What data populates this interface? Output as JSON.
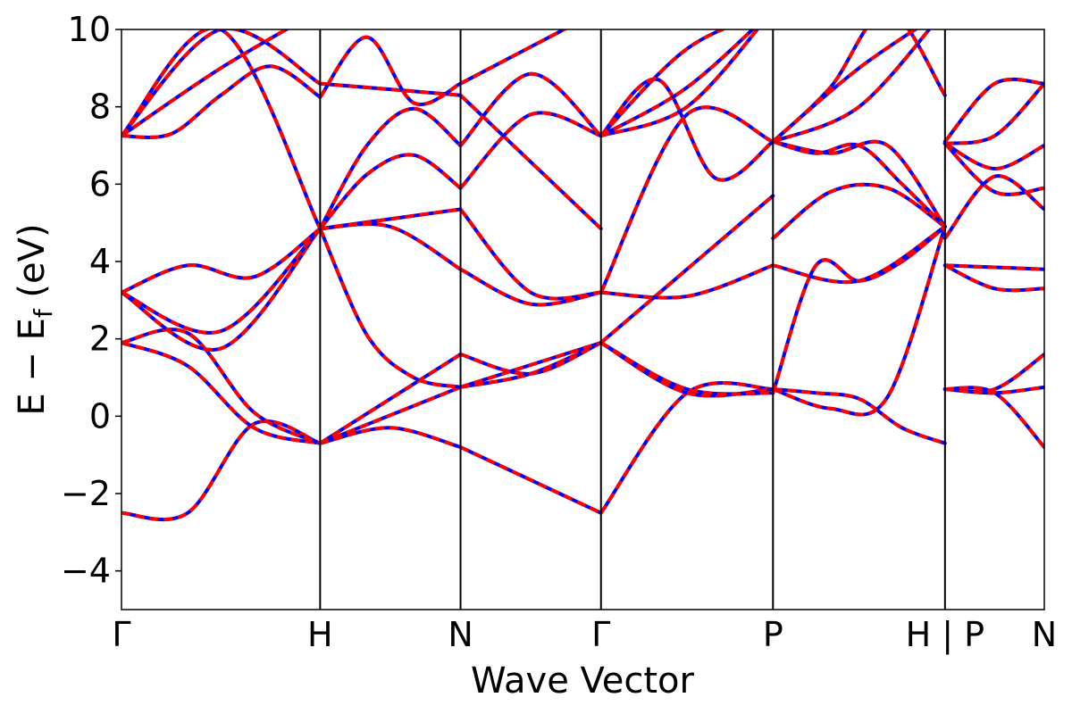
{
  "chart_data": {
    "type": "line",
    "title": "",
    "xlabel": "Wave Vector",
    "ylabel": "E − E",
    "ylabel_sub": "f",
    "ylabel_unit": " (eV)",
    "ylim": [
      -5,
      10
    ],
    "yticks": [
      -4,
      -2,
      0,
      2,
      4,
      6,
      8,
      10
    ],
    "ytick_labels": [
      "−4",
      "−2",
      "0",
      "2",
      "4",
      "6",
      "8",
      "10"
    ],
    "kpath_positions": [
      0,
      1.0,
      0.707,
      0.707,
      0.866,
      0.866,
      0.5
    ],
    "kpath_labels": [
      "Γ",
      "H",
      "N",
      "Γ",
      "P",
      "H | P",
      "N"
    ],
    "grid": false,
    "legend": "none",
    "series_styles": {
      "reference": {
        "color": "#0000ff",
        "style": "solid"
      },
      "overlay": {
        "color": "#ff0000",
        "style": "dashed"
      }
    },
    "bands": [
      [
        [
          -2.5,
          -2.5,
          -0.2,
          -0.7
        ],
        [
          -0.7,
          -0.3,
          -0.8
        ],
        [
          -0.8,
          -2.5
        ],
        [
          -2.5,
          0.6,
          0.7
        ],
        [
          0.7,
          0.6,
          0.45,
          -0.3,
          -0.7
        ],
        [
          0.7,
          0.7,
          1.6
        ]
      ],
      [
        [
          1.9,
          1.3,
          -0.3,
          -0.7
        ],
        [
          -0.7,
          0.75
        ],
        [
          0.75,
          1.1,
          1.9
        ],
        [
          1.9,
          0.6,
          0.7
        ],
        [
          0.7,
          0.2,
          0.5,
          4.9
        ],
        [
          0.7,
          0.6,
          0.75
        ]
      ],
      [
        [
          1.9,
          2.15,
          0.1,
          -0.7
        ],
        [
          -0.7,
          1.6
        ],
        [
          1.6,
          1.1,
          1.9
        ],
        [
          1.9,
          0.7,
          0.6
        ],
        [
          0.6,
          3.9,
          3.5,
          4.0,
          4.9
        ],
        [
          0.7,
          0.6,
          -0.8
        ]
      ],
      [
        [
          3.2,
          1.75,
          4.85
        ],
        [
          4.85,
          2.1,
          1.0,
          0.75
        ],
        [
          0.75,
          1.9
        ],
        [
          1.9,
          5.7
        ],
        [
          4.6,
          5.8,
          5.9,
          4.9
        ],
        [
          3.9,
          3.85,
          3.8
        ]
      ],
      [
        [
          3.2,
          2.2,
          4.85
        ],
        [
          4.85,
          5.35
        ],
        [
          5.35,
          3.2,
          3.2
        ],
        [
          3.2,
          3.1,
          3.9
        ],
        [
          3.9,
          3.5,
          4.9
        ],
        [
          3.9,
          3.3,
          3.3
        ]
      ],
      [
        [
          3.2,
          3.9,
          3.6,
          4.85
        ],
        [
          4.85,
          4.9,
          3.8
        ],
        [
          3.8,
          2.9,
          3.2
        ],
        [
          3.2,
          7.8,
          7.1
        ],
        [
          7.1,
          6.8,
          7.0,
          4.9
        ],
        [
          4.6,
          6.2,
          5.35
        ]
      ],
      [
        [
          7.25,
          10.0,
          8.6
        ],
        [
          8.6,
          8.3
        ],
        [
          8.3,
          4.85
        ],
        [
          7.25,
          8.7,
          6.15,
          7.1
        ],
        [
          7.1,
          6.8,
          7.0,
          6.0,
          4.9
        ],
        [
          7.05,
          6.4,
          7.0
        ]
      ],
      [
        [
          7.25,
          10.0,
          4.85
        ],
        [
          4.85,
          6.25,
          6.75,
          5.9
        ],
        [
          5.9,
          7.8,
          7.25
        ],
        [
          7.25,
          8.5,
          10.5
        ],
        [
          7.1,
          8.0,
          10.5
        ],
        [
          7.05,
          5.8,
          5.9
        ]
      ],
      [
        [
          7.25,
          7.3,
          8.3,
          9.05,
          8.25
        ],
        [
          8.25,
          9.8,
          8.1,
          8.6
        ],
        [
          8.6,
          10.5
        ],
        [
          7.25,
          8.0,
          10.5
        ],
        [
          7.1,
          8.5,
          10.5,
          8.3
        ],
        [
          7.05,
          7.25,
          8.6
        ]
      ],
      [
        [
          7.25,
          9.0,
          10.5
        ],
        [
          4.85,
          7.0,
          7.95,
          7.0
        ],
        [
          7.0,
          8.85,
          7.25
        ],
        [
          7.25,
          9.5,
          10.5
        ],
        [
          7.1,
          9.0,
          10.5
        ],
        [
          7.1,
          8.6,
          8.6
        ]
      ]
    ]
  }
}
